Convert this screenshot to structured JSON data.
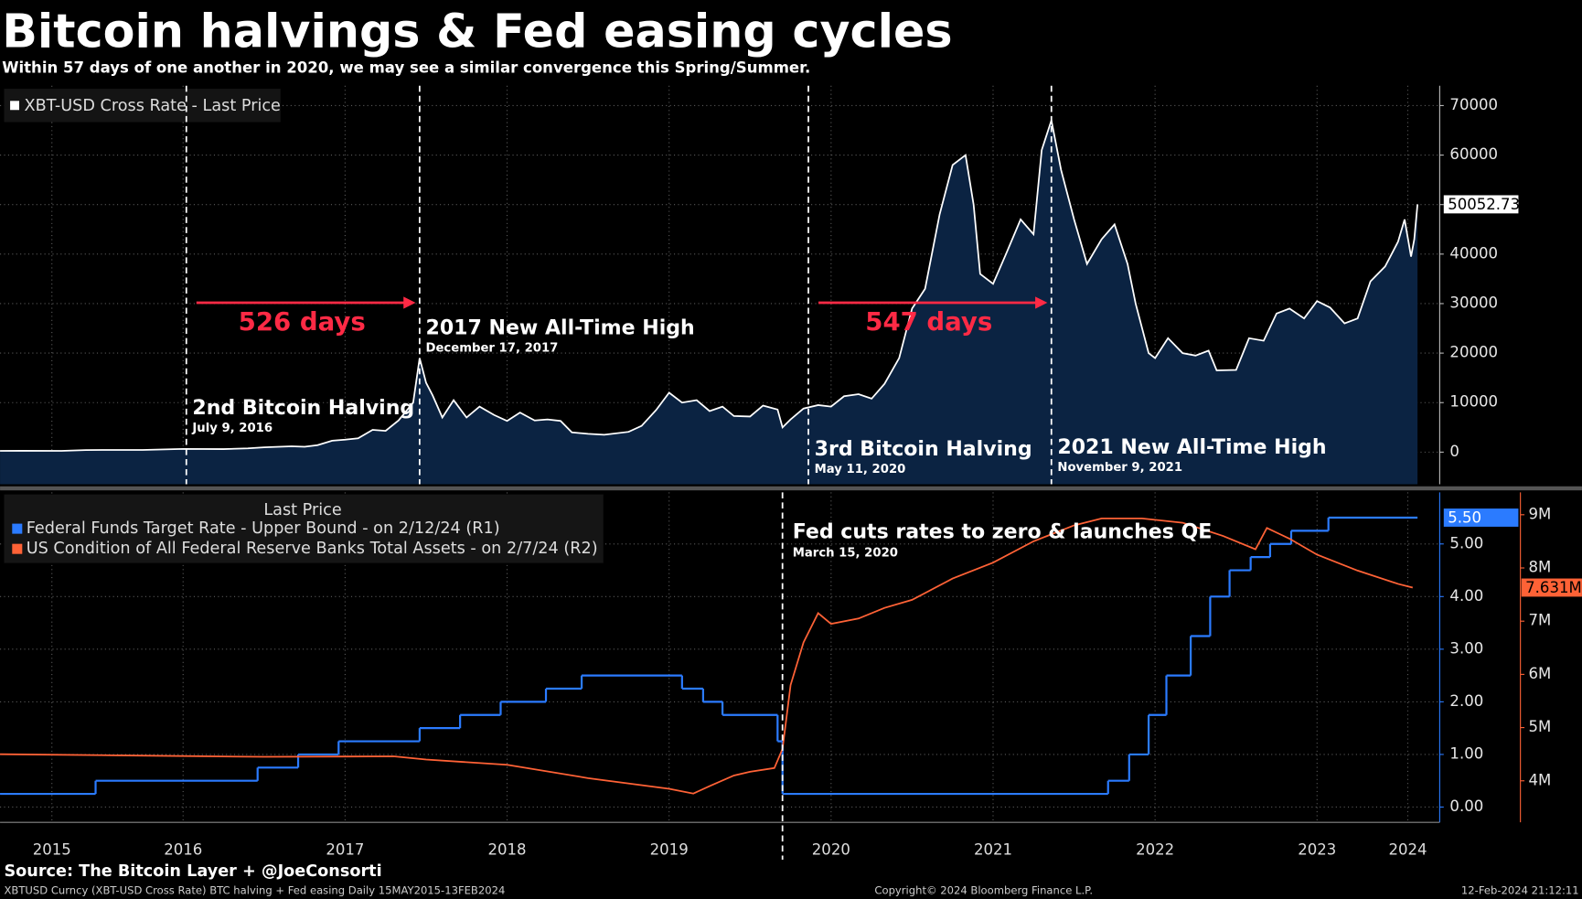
{
  "title": "Bitcoin halvings & Fed easing cycles",
  "subtitle": "Within 57 days of one another in 2020, we may see a similar convergence this Spring/Summer.",
  "source": "Source: The Bitcoin Layer + @JoeConsorti",
  "footer": {
    "left": "XBTUSD Curncy (XBT-USD Cross Rate) BTC halving + Fed easing  Daily 15MAY2015-13FEB2024",
    "center": "Copyright© 2024 Bloomberg Finance L.P.",
    "right": "12-Feb-2024 21:12:11"
  },
  "chart_data": [
    {
      "type": "area",
      "xlim": [
        2015.37,
        2024.12
      ],
      "ylim": [
        -6500,
        74000
      ],
      "yticks": [
        0,
        10000,
        20000,
        30000,
        40000,
        50000,
        60000,
        70000
      ],
      "grid": true,
      "series": [
        {
          "name": "XBT-USD Cross Rate - Last Price",
          "color": "#ffffff",
          "fill": "#0b2342",
          "x": [
            2015.37,
            2015.5,
            2015.75,
            2015.9,
            2016.0,
            2016.25,
            2016.5,
            2016.75,
            2016.9,
            2017.0,
            2017.17,
            2017.25,
            2017.33,
            2017.42,
            2017.5,
            2017.58,
            2017.67,
            2017.75,
            2017.83,
            2017.92,
            2017.96,
            2018.0,
            2018.04,
            2018.1,
            2018.17,
            2018.25,
            2018.33,
            2018.42,
            2018.5,
            2018.58,
            2018.67,
            2018.75,
            2018.83,
            2018.9,
            2019.0,
            2019.1,
            2019.25,
            2019.33,
            2019.42,
            2019.5,
            2019.58,
            2019.67,
            2019.75,
            2019.83,
            2019.9,
            2020.0,
            2020.08,
            2020.17,
            2020.2,
            2020.25,
            2020.33,
            2020.42,
            2020.5,
            2020.58,
            2020.67,
            2020.75,
            2020.83,
            2020.92,
            2021.0,
            2021.08,
            2021.17,
            2021.25,
            2021.33,
            2021.38,
            2021.42,
            2021.5,
            2021.58,
            2021.67,
            2021.75,
            2021.8,
            2021.86,
            2021.92,
            2022.0,
            2022.08,
            2022.17,
            2022.25,
            2022.33,
            2022.38,
            2022.46,
            2022.5,
            2022.58,
            2022.67,
            2022.75,
            2022.83,
            2022.88,
            2023.0,
            2023.08,
            2023.17,
            2023.25,
            2023.33,
            2023.42,
            2023.5,
            2023.58,
            2023.67,
            2023.75,
            2023.83,
            2023.92,
            2024.0,
            2024.04,
            2024.08,
            2024.1,
            2024.12
          ],
          "values": [
            240,
            270,
            240,
            400,
            430,
            420,
            650,
            610,
            750,
            970,
            1180,
            1080,
            1400,
            2300,
            2500,
            2800,
            4500,
            4300,
            6400,
            10000,
            19000,
            14000,
            11500,
            7000,
            10500,
            7000,
            9200,
            7500,
            6300,
            8000,
            6400,
            6600,
            6300,
            4000,
            3700,
            3500,
            4100,
            5300,
            8500,
            12000,
            10000,
            10500,
            8300,
            9200,
            7300,
            7200,
            9400,
            8600,
            5000,
            6600,
            8800,
            9500,
            9200,
            11300,
            11700,
            10800,
            13800,
            19000,
            29000,
            33000,
            48000,
            58000,
            60000,
            50000,
            36000,
            34000,
            40000,
            47000,
            44000,
            61000,
            67000,
            57000,
            47000,
            38000,
            43000,
            46000,
            38000,
            30000,
            20000,
            19000,
            23000,
            20000,
            19500,
            20500,
            16500,
            16600,
            23000,
            22500,
            28000,
            29000,
            27000,
            30500,
            29200,
            26000,
            27000,
            34500,
            37500,
            42500,
            47000,
            39500,
            43000,
            50052.73
          ]
        }
      ],
      "annotations": [
        {
          "x": 2016.52,
          "label": "2nd Bitcoin Halving",
          "date": "July 9, 2016"
        },
        {
          "x": 2017.96,
          "label": "2017 New All-Time High",
          "date": "December 17, 2017"
        },
        {
          "x": 2020.36,
          "label": "3rd Bitcoin Halving",
          "date": "May 11, 2020"
        },
        {
          "x": 2021.86,
          "label": "2021 New All-Time High",
          "date": "November 9, 2021"
        }
      ],
      "arrows": [
        {
          "label": "526 days",
          "color": "#ff2a45"
        },
        {
          "label": "547 days",
          "color": "#ff2a45"
        }
      ]
    },
    {
      "type": "line",
      "xlim": [
        2015.37,
        2024.12
      ],
      "xticks": [
        {
          "value": 2015.69,
          "label": "2015"
        },
        {
          "value": 2016.5,
          "label": "2016"
        },
        {
          "value": 2017.5,
          "label": "2017"
        },
        {
          "value": 2018.5,
          "label": "2018"
        },
        {
          "value": 2019.5,
          "label": "2019"
        },
        {
          "value": 2020.5,
          "label": "2020"
        },
        {
          "value": 2021.5,
          "label": "2021"
        },
        {
          "value": 2022.5,
          "label": "2022"
        },
        {
          "value": 2023.5,
          "label": "2023"
        },
        {
          "value": 2024.06,
          "label": "2024"
        }
      ],
      "ylim": [
        -0.29,
        5.98
      ],
      "yticks": [
        {
          "value": 0,
          "label": "0.00"
        },
        {
          "value": 1,
          "label": "1.00"
        },
        {
          "value": 2,
          "label": "2.00"
        },
        {
          "value": 3,
          "label": "3.00"
        },
        {
          "value": 4,
          "label": "4.00"
        },
        {
          "value": 5,
          "label": "5.00"
        }
      ],
      "y2lim": [
        3.22,
        9.42
      ],
      "y2ticks": [
        {
          "value": 4,
          "label": "4M"
        },
        {
          "value": 5,
          "label": "5M"
        },
        {
          "value": 6,
          "label": "6M"
        },
        {
          "value": 7,
          "label": "7M"
        },
        {
          "value": 8,
          "label": "8M"
        },
        {
          "value": 9,
          "label": "9M"
        }
      ],
      "grid": true,
      "legend_title": "Last Price",
      "series": [
        {
          "name": "Federal Funds Target Rate - Upper Bound -  on 2/12/24  (R1)",
          "color": "#2b7bff",
          "step": true,
          "axis": "y",
          "x": [
            2015.37,
            2015.96,
            2016.96,
            2017.21,
            2017.46,
            2017.96,
            2018.21,
            2018.46,
            2018.74,
            2018.96,
            2019.58,
            2019.71,
            2019.83,
            2020.17,
            2020.2,
            2022.21,
            2022.34,
            2022.46,
            2022.57,
            2022.72,
            2022.84,
            2022.96,
            2023.09,
            2023.21,
            2023.34,
            2023.57,
            2024.12
          ],
          "values": [
            0.25,
            0.5,
            0.75,
            1.0,
            1.25,
            1.5,
            1.75,
            2.0,
            2.25,
            2.5,
            2.25,
            2.0,
            1.75,
            1.25,
            0.25,
            0.5,
            1.0,
            1.75,
            2.5,
            3.25,
            4.0,
            4.5,
            4.75,
            5.0,
            5.25,
            5.5,
            5.5
          ],
          "value_labels": [
            null,
            null,
            null,
            null,
            null,
            null,
            null,
            null,
            null,
            null,
            null,
            null,
            null,
            null,
            null,
            null,
            null,
            null,
            null,
            null,
            null,
            null,
            null,
            null,
            null,
            null,
            "5.50"
          ]
        },
        {
          "name": "US Condition of All Federal Reserve Banks Total Assets -  on 2/7/24  (R2)",
          "color": "#ff6236",
          "axis": "y2",
          "x": [
            2015.37,
            2016,
            2017,
            2017.8,
            2018,
            2018.5,
            2019,
            2019.5,
            2019.65,
            2019.75,
            2019.9,
            2020,
            2020.15,
            2020.2,
            2020.25,
            2020.33,
            2020.42,
            2020.5,
            2020.67,
            2020.83,
            2021,
            2021.25,
            2021.5,
            2021.75,
            2022,
            2022.17,
            2022.42,
            2022.67,
            2022.92,
            2023.12,
            2023.19,
            2023.33,
            2023.5,
            2023.75,
            2024,
            2024.09
          ],
          "values": [
            4.5,
            4.48,
            4.45,
            4.46,
            4.4,
            4.3,
            4.05,
            3.85,
            3.76,
            3.9,
            4.1,
            4.17,
            4.24,
            4.6,
            5.8,
            6.6,
            7.15,
            6.95,
            7.05,
            7.25,
            7.4,
            7.8,
            8.1,
            8.5,
            8.8,
            8.93,
            8.93,
            8.85,
            8.6,
            8.35,
            8.75,
            8.55,
            8.25,
            7.95,
            7.7,
            7.631
          ],
          "value_labels": [
            null,
            null,
            null,
            null,
            null,
            null,
            null,
            null,
            null,
            null,
            null,
            null,
            null,
            null,
            null,
            null,
            null,
            null,
            null,
            null,
            null,
            null,
            null,
            null,
            null,
            null,
            null,
            null,
            null,
            null,
            null,
            null,
            null,
            null,
            null,
            "7.631M"
          ]
        }
      ],
      "annotations": [
        {
          "x": 2020.2,
          "label": "Fed cuts rates to zero & launches QE",
          "date": "March 15, 2020"
        }
      ]
    }
  ]
}
